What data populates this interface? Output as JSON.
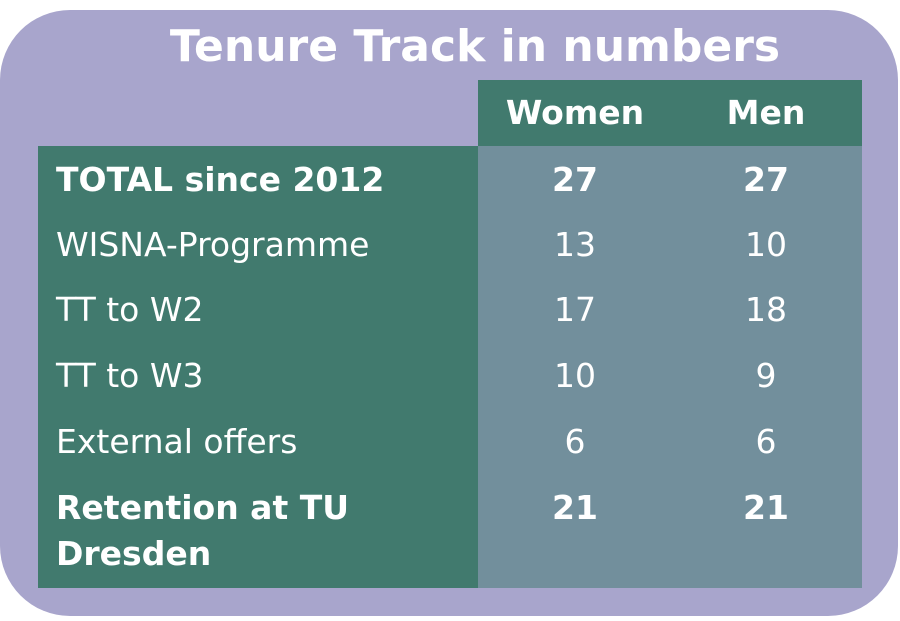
{
  "header": {
    "title": "Tenure Track in numbers"
  },
  "table": {
    "columns": [
      "Women",
      "Men"
    ],
    "rows": [
      [
        "TOTAL since 2012",
        27,
        27
      ],
      [
        "WISNA-Programme",
        13,
        10
      ],
      [
        "TT to W2",
        17,
        18
      ],
      [
        "TT to W3",
        10,
        9
      ],
      [
        "External offers",
        6,
        6
      ],
      [
        "Retention at TU Dresden",
        21,
        21
      ]
    ],
    "bold_rows": [
      0,
      5
    ]
  }
}
